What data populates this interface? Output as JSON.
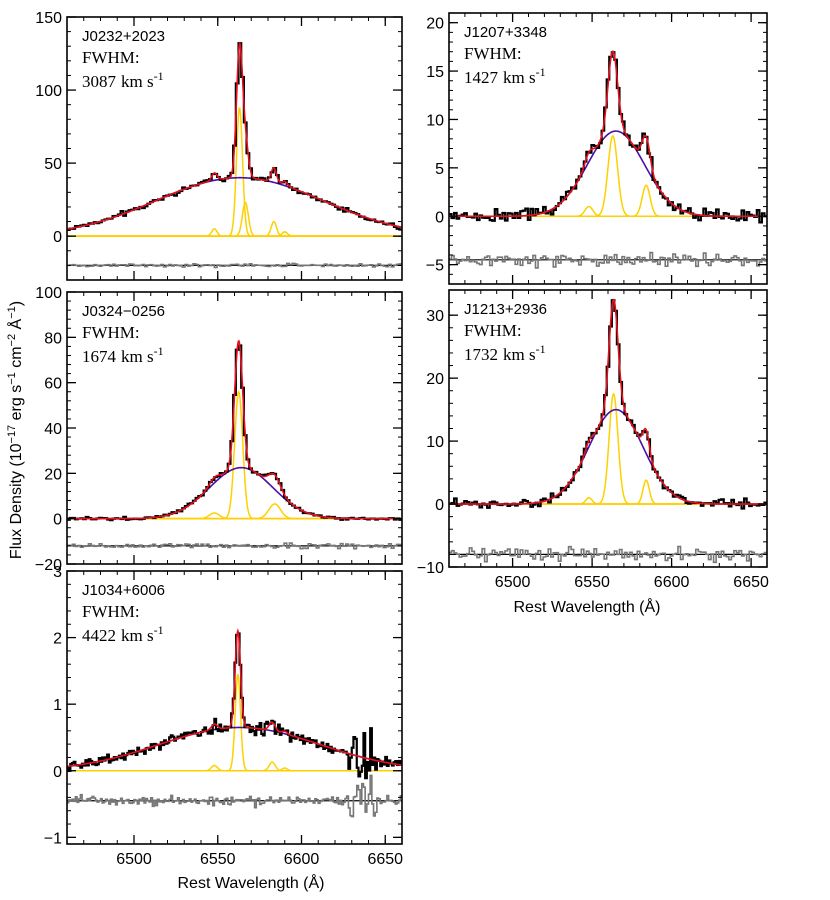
{
  "figure": {
    "ylabel": {
      "main": "Flux Density (10",
      "exp1": "−17",
      "mid": " erg s",
      "exp2": "−1",
      "mid2": " cm",
      "exp3": "−2",
      "mid3": " Å",
      "exp4": "−1",
      "end": ")"
    },
    "xlabel": "Rest Wavelength (Å)",
    "fwhm_label": "FWHM:",
    "unit_text": "km s",
    "unit_exp": "-1"
  },
  "colors": {
    "data": "#000000",
    "total_fit": "#e8101e",
    "broad": "#4b0fa5",
    "narrow": "#ffd000",
    "residual": "#777777",
    "zero_line": "#000000"
  },
  "chart_data": [
    {
      "type": "line",
      "object": "J0232+2023",
      "fwhm_value": "3087",
      "xlim": [
        6460,
        6660
      ],
      "ylim": [
        -30,
        150
      ],
      "yticks": [
        0,
        50,
        100,
        150
      ],
      "ytick_labels": [
        "0",
        "50",
        "100",
        "150"
      ],
      "xticks": [
        6500,
        6550,
        6600,
        6650
      ],
      "show_xtick_labels": false,
      "residual_offset": -20,
      "data_noise": 1.2,
      "residual_noise": 0.8,
      "broad": {
        "amp": 40,
        "center": 6563,
        "sigma": 50
      },
      "narrow": [
        {
          "line": "[NII]6548",
          "amp": 5,
          "center": 6548,
          "sigma": 1.6
        },
        {
          "line": "Halpha",
          "amp": 88,
          "center": 6563,
          "sigma": 1.8
        },
        {
          "line": "[NII]6584",
          "amp": 23,
          "center": 6566.5,
          "sigma": 1.8
        },
        {
          "line": "[NII]6584b",
          "amp": 10,
          "center": 6583.5,
          "sigma": 1.6
        },
        {
          "line": "[SII]",
          "amp": 3,
          "center": 6590,
          "sigma": 1.6
        }
      ]
    },
    {
      "type": "line",
      "object": "J1207+3348",
      "fwhm_value": "1427",
      "xlim": [
        6460,
        6660
      ],
      "ylim": [
        -7,
        21
      ],
      "yticks": [
        -5,
        0,
        5,
        10,
        15,
        20
      ],
      "ytick_labels": [
        "−5",
        "0",
        "5",
        "10",
        "15",
        "20"
      ],
      "xticks": [
        6500,
        6550,
        6600,
        6650
      ],
      "show_xtick_labels": false,
      "residual_offset": -4.5,
      "data_noise": 0.5,
      "residual_noise": 0.5,
      "broad": {
        "amp": 8.8,
        "center": 6565,
        "sigma": 18
      },
      "narrow": [
        {
          "line": "[NII]6548",
          "amp": 1,
          "center": 6548,
          "sigma": 2.5
        },
        {
          "line": "Halpha",
          "amp": 8.3,
          "center": 6563,
          "sigma": 3
        },
        {
          "line": "[NII]6584",
          "amp": 3.2,
          "center": 6584,
          "sigma": 2.5
        }
      ]
    },
    {
      "type": "line",
      "object": "J0324−0256",
      "fwhm_value": "1674",
      "xlim": [
        6460,
        6660
      ],
      "ylim": [
        -20,
        100
      ],
      "yticks": [
        -20,
        0,
        20,
        40,
        60,
        80,
        100
      ],
      "ytick_labels": [
        "−20",
        "0",
        "20",
        "40",
        "60",
        "80",
        "100"
      ],
      "xticks": [
        6500,
        6550,
        6600,
        6650
      ],
      "show_xtick_labels": false,
      "residual_offset": -12,
      "data_noise": 0.5,
      "residual_noise": 0.8,
      "broad": {
        "amp": 22.5,
        "center": 6564,
        "sigma": 19
      },
      "narrow": [
        {
          "line": "[NII]6548",
          "amp": 2.5,
          "center": 6548,
          "sigma": 3
        },
        {
          "line": "Halpha",
          "amp": 56,
          "center": 6562.5,
          "sigma": 2.4
        },
        {
          "line": "[NII]6584",
          "amp": 6.5,
          "center": 6584,
          "sigma": 3.5
        }
      ]
    },
    {
      "type": "line",
      "object": "J1213+2936",
      "fwhm_value": "1732",
      "xlim": [
        6460,
        6660
      ],
      "ylim": [
        -10,
        34
      ],
      "yticks": [
        -10,
        0,
        10,
        20,
        30
      ],
      "ytick_labels": [
        "−10",
        "0",
        "10",
        "20",
        "30"
      ],
      "xticks": [
        6500,
        6550,
        6600,
        6650
      ],
      "show_xtick_labels": true,
      "xtick_labels": [
        "6500",
        "6550",
        "6600",
        "6650"
      ],
      "residual_offset": -8,
      "data_noise": 0.5,
      "residual_noise": 0.7,
      "broad": {
        "amp": 15,
        "center": 6565,
        "sigma": 17
      },
      "narrow": [
        {
          "line": "[NII]6548",
          "amp": 1,
          "center": 6548,
          "sigma": 2
        },
        {
          "line": "Halpha",
          "amp": 17.5,
          "center": 6563.5,
          "sigma": 2.8
        },
        {
          "line": "[NII]6584",
          "amp": 3.8,
          "center": 6584,
          "sigma": 2
        }
      ]
    },
    {
      "type": "line",
      "object": "J1034+6006",
      "fwhm_value": "4422",
      "xlim": [
        6460,
        6660
      ],
      "ylim": [
        -1.1,
        3
      ],
      "yticks": [
        -1,
        0,
        1,
        2,
        3
      ],
      "ytick_labels": [
        "−1",
        "0",
        "1",
        "2",
        "3"
      ],
      "xticks": [
        6500,
        6550,
        6600,
        6650
      ],
      "show_xtick_labels": true,
      "xtick_labels": [
        "6500",
        "6550",
        "6600",
        "6650"
      ],
      "residual_offset": -0.45,
      "data_noise": 0.06,
      "residual_noise": 0.05,
      "broad": {
        "amp": 0.65,
        "center": 6563,
        "sigma": 48
      },
      "narrow": [
        {
          "line": "[NII]6548",
          "amp": 0.08,
          "center": 6548,
          "sigma": 1.8
        },
        {
          "line": "Halpha",
          "amp": 1.45,
          "center": 6562,
          "sigma": 1.6
        },
        {
          "line": "[NII]6584",
          "amp": 0.13,
          "center": 6582.5,
          "sigma": 1.8
        },
        {
          "line": "[SII]",
          "amp": 0.04,
          "center": 6590,
          "sigma": 1.6
        }
      ]
    }
  ]
}
